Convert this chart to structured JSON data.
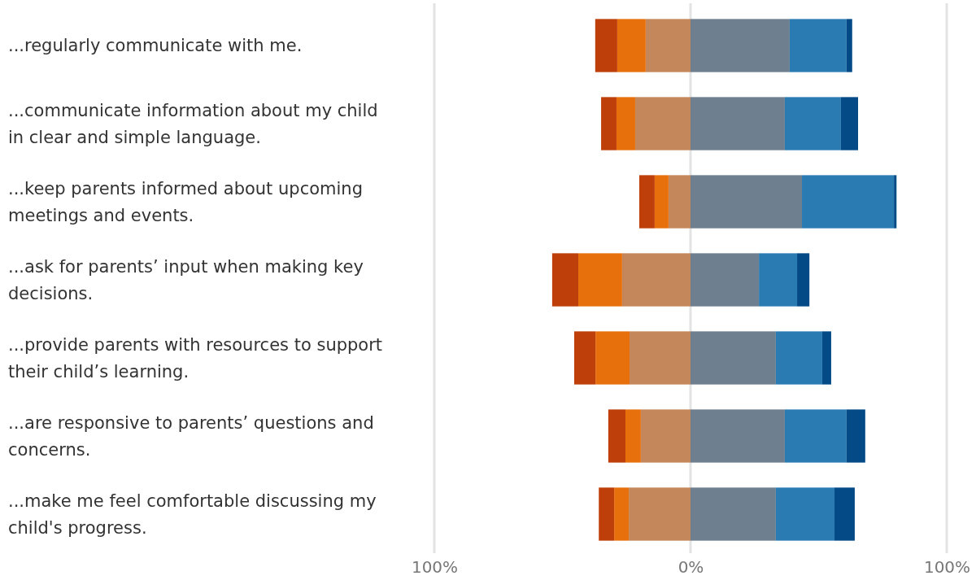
{
  "chart_data": {
    "type": "bar",
    "orientation": "horizontal",
    "stacked": true,
    "categories": [
      "...regularly communicate with me.",
      "...communicate information about my child in clear and simple language.",
      "...keep parents informed about upcoming meetings and events.",
      "...ask for parents’ input when making key decisions.",
      "...provide parents with resources to support their child’s learning.",
      "...are responsive to parents’ questions and concerns.",
      "...make me feel comfortable discussing my child's progress."
    ],
    "series": [
      {
        "color": "#c4875c",
        "values": [
          -17.5,
          -21.6,
          -8.6,
          -26.7,
          -23.8,
          -19.4,
          -24.1
        ]
      },
      {
        "color": "#e8700c",
        "values": [
          -11.1,
          -7.3,
          -5.4,
          -17.1,
          -13.3,
          -6.0,
          -5.7
        ]
      },
      {
        "color": "#bf3f0a",
        "values": [
          -8.6,
          -6.0,
          -6.0,
          -10.2,
          -8.3,
          -6.7,
          -6.0
        ]
      },
      {
        "color": "#6e7f8f",
        "values": [
          38.7,
          36.8,
          43.5,
          26.7,
          33.3,
          36.8,
          33.3
        ]
      },
      {
        "color": "#2b7bb3",
        "values": [
          22.2,
          21.9,
          35.9,
          14.9,
          18.1,
          24.1,
          22.9
        ]
      },
      {
        "color": "#034a86",
        "values": [
          2.2,
          6.7,
          1.0,
          4.8,
          3.5,
          7.3,
          7.9
        ]
      }
    ],
    "xlim": [
      -100,
      100
    ],
    "xticks": [
      {
        "value": -100,
        "label": "100%"
      },
      {
        "value": 0,
        "label": "0%"
      },
      {
        "value": 100,
        "label": "100%"
      }
    ],
    "grid": "x"
  }
}
